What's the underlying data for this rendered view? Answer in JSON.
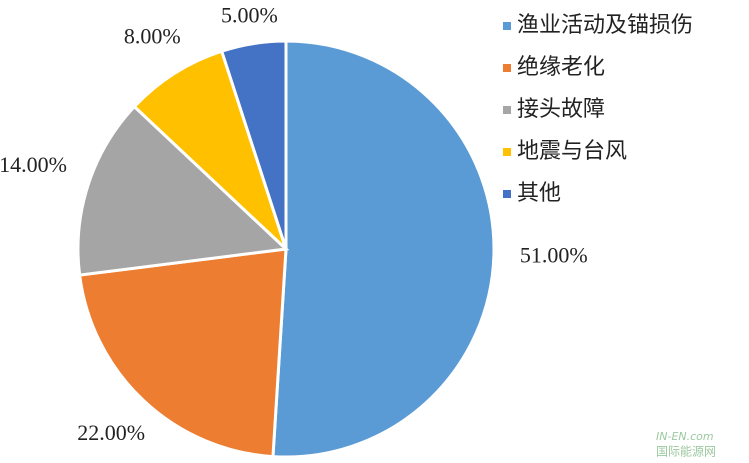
{
  "chart_data": {
    "type": "pie",
    "categories": [
      "渔业活动及锚损伤",
      "绝缘老化",
      "接头故障",
      "地震与台风",
      "其他"
    ],
    "values": [
      51,
      22,
      14,
      8,
      5
    ],
    "value_labels": [
      "51.00%",
      "22.00%",
      "14.00%",
      "8.00%",
      "5.00%"
    ],
    "colors": [
      "#5b9bd5",
      "#ed7d31",
      "#a5a5a5",
      "#ffc000",
      "#4472c4"
    ],
    "legend": "right",
    "watermark": [
      "IN-EN.com",
      "国际能源网"
    ]
  }
}
